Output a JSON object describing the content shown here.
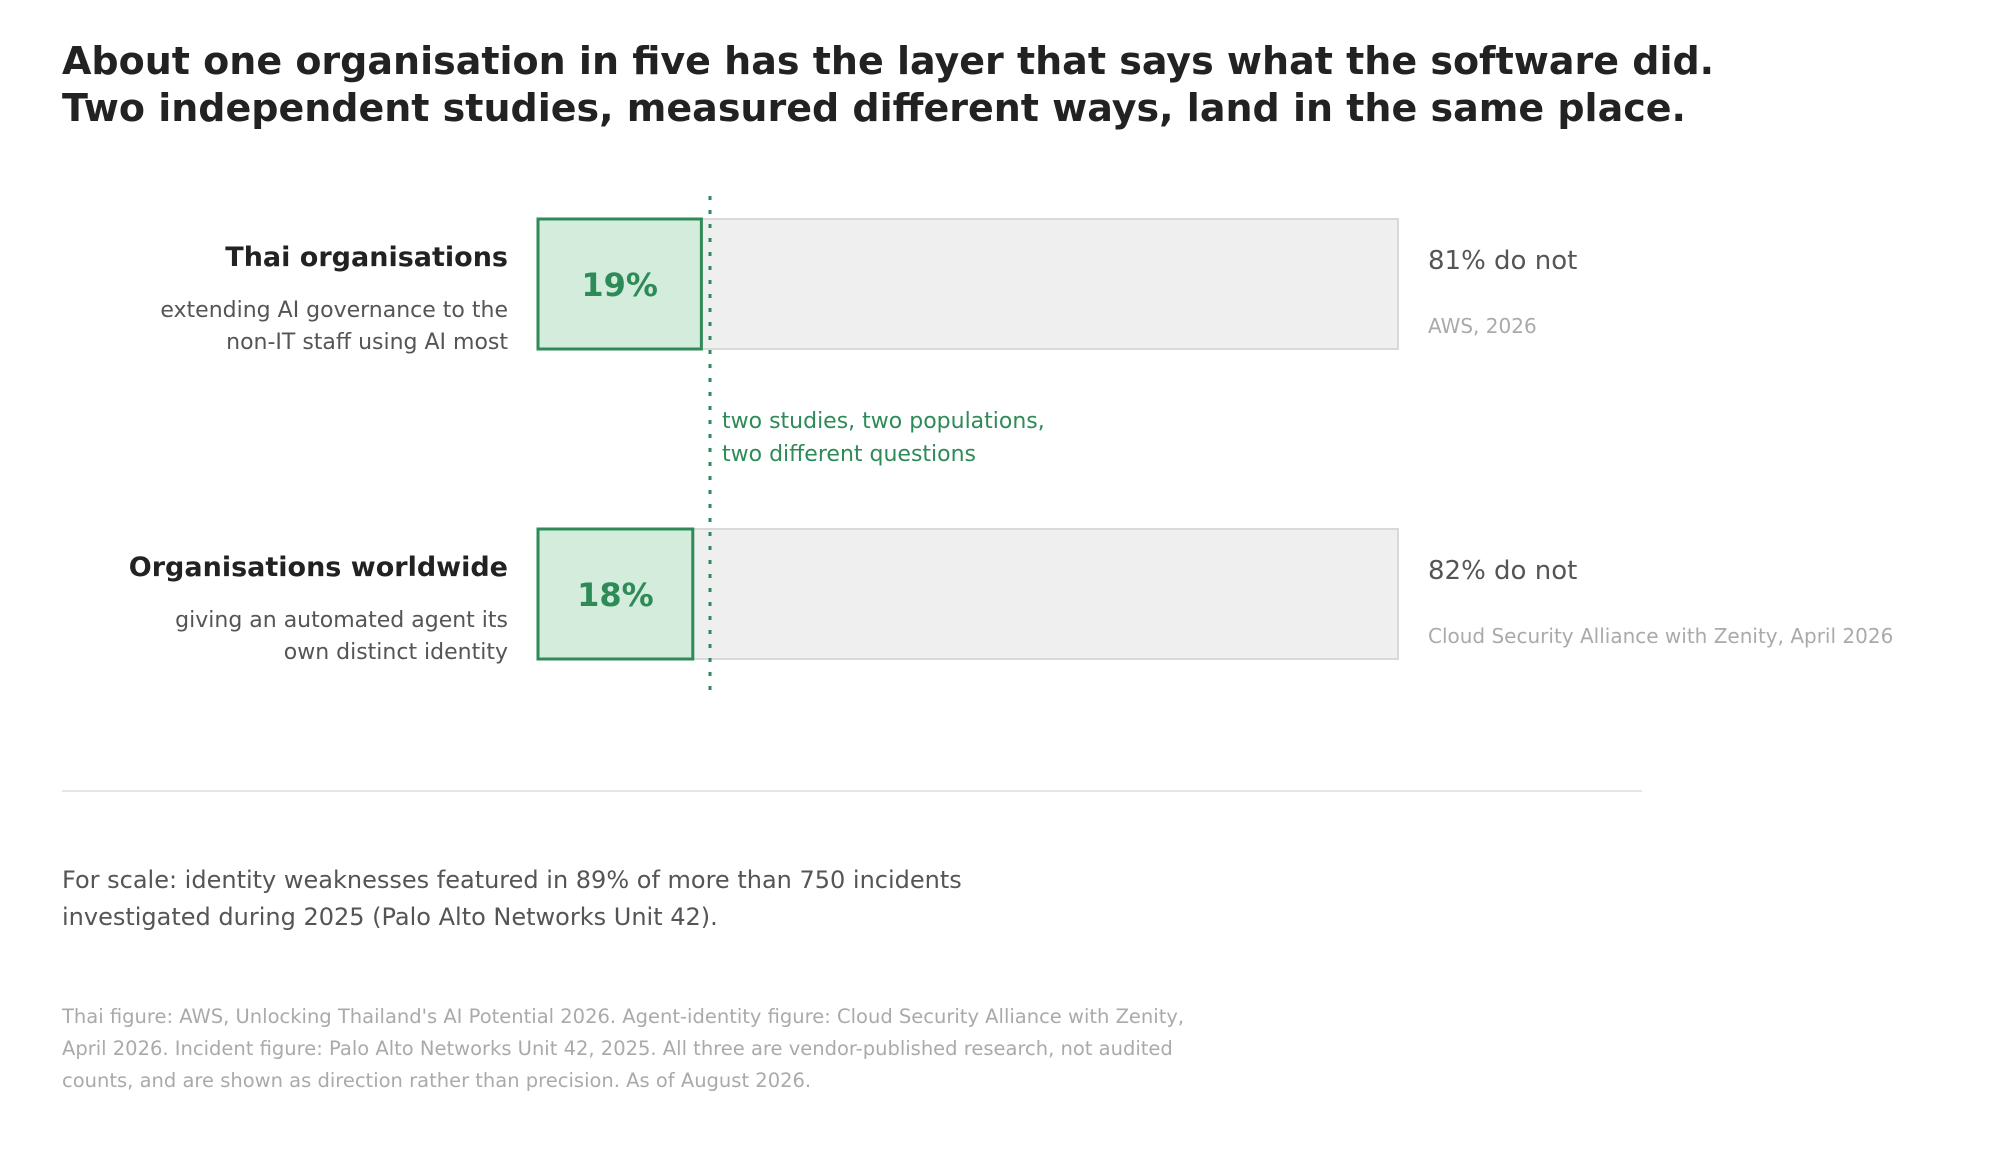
{
  "title_lines": [
    "About one organisation in five has the layer that says what the software did.",
    "Two independent studies, measured different ways, land in the same place."
  ],
  "chart_data": {
    "type": "bar",
    "orientation": "horizontal",
    "stacked": true,
    "xlim": [
      0,
      100
    ],
    "grid": false,
    "legend": "none",
    "annotation_lines": [
      "two studies, two populations,",
      "two different questions"
    ],
    "rows": [
      {
        "label": "Thai organisations",
        "sublabel_lines": [
          "extending AI governance to the",
          "non-IT staff using AI most"
        ],
        "value": 19,
        "value_label": "19%",
        "remainder_label": "81% do not",
        "source": "AWS, 2026"
      },
      {
        "label": "Organisations worldwide",
        "sublabel_lines": [
          "giving an automated agent its",
          "own distinct identity"
        ],
        "value": 18,
        "value_label": "18%",
        "remainder_label": "82% do not",
        "source": "Cloud Security Alliance with Zenity, April 2026"
      }
    ],
    "reference_value": 20
  },
  "colors": {
    "accent": "#2e8b57",
    "accent_fill": "#d3ecdc",
    "remainder_fill": "#efefef",
    "remainder_stroke": "#d9d9d9",
    "title": "#222222",
    "label": "#222222",
    "sublabel": "#555555",
    "source": "#aaaaaa"
  },
  "scale_note_lines": [
    "For scale: identity weaknesses featured in 89% of more than 750 incidents",
    "investigated during 2025 (Palo Alto Networks Unit 42)."
  ],
  "sources_lines": [
    "Thai figure: AWS, Unlocking Thailand's AI Potential 2026. Agent-identity figure: Cloud Security Alliance with Zenity,",
    "April 2026. Incident figure: Palo Alto Networks Unit 42, 2025. All three are vendor-published research, not audited",
    "counts, and are shown as direction rather than precision. As of August 2026."
  ]
}
